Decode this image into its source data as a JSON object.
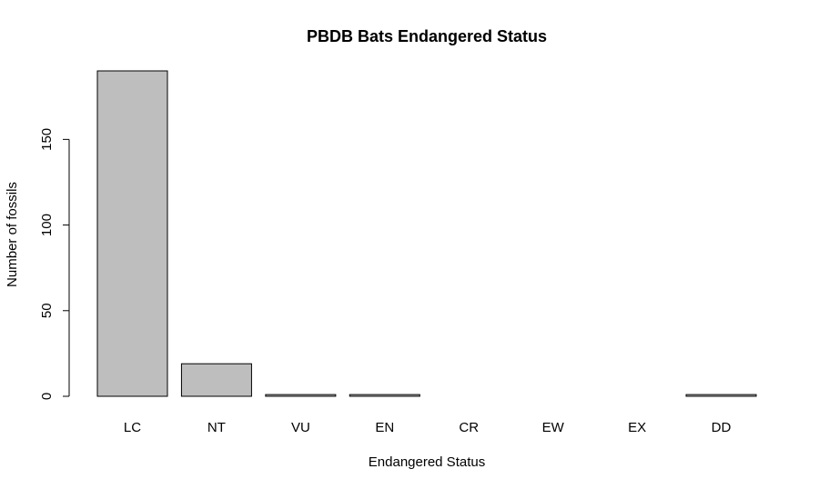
{
  "chart_data": {
    "type": "bar",
    "title": "PBDB Bats Endangered Status",
    "xlabel": "Endangered Status",
    "ylabel": "Number of fossils",
    "categories": [
      "LC",
      "NT",
      "VU",
      "EN",
      "CR",
      "EW",
      "EX",
      "DD"
    ],
    "values": [
      190,
      19,
      1,
      1,
      0,
      0,
      0,
      1
    ],
    "ylim": [
      0,
      190
    ],
    "yticks": [
      0,
      50,
      100,
      150
    ],
    "grid": false,
    "legend": "none",
    "bar_color": "#bebebe",
    "outline_color": "#000000"
  }
}
